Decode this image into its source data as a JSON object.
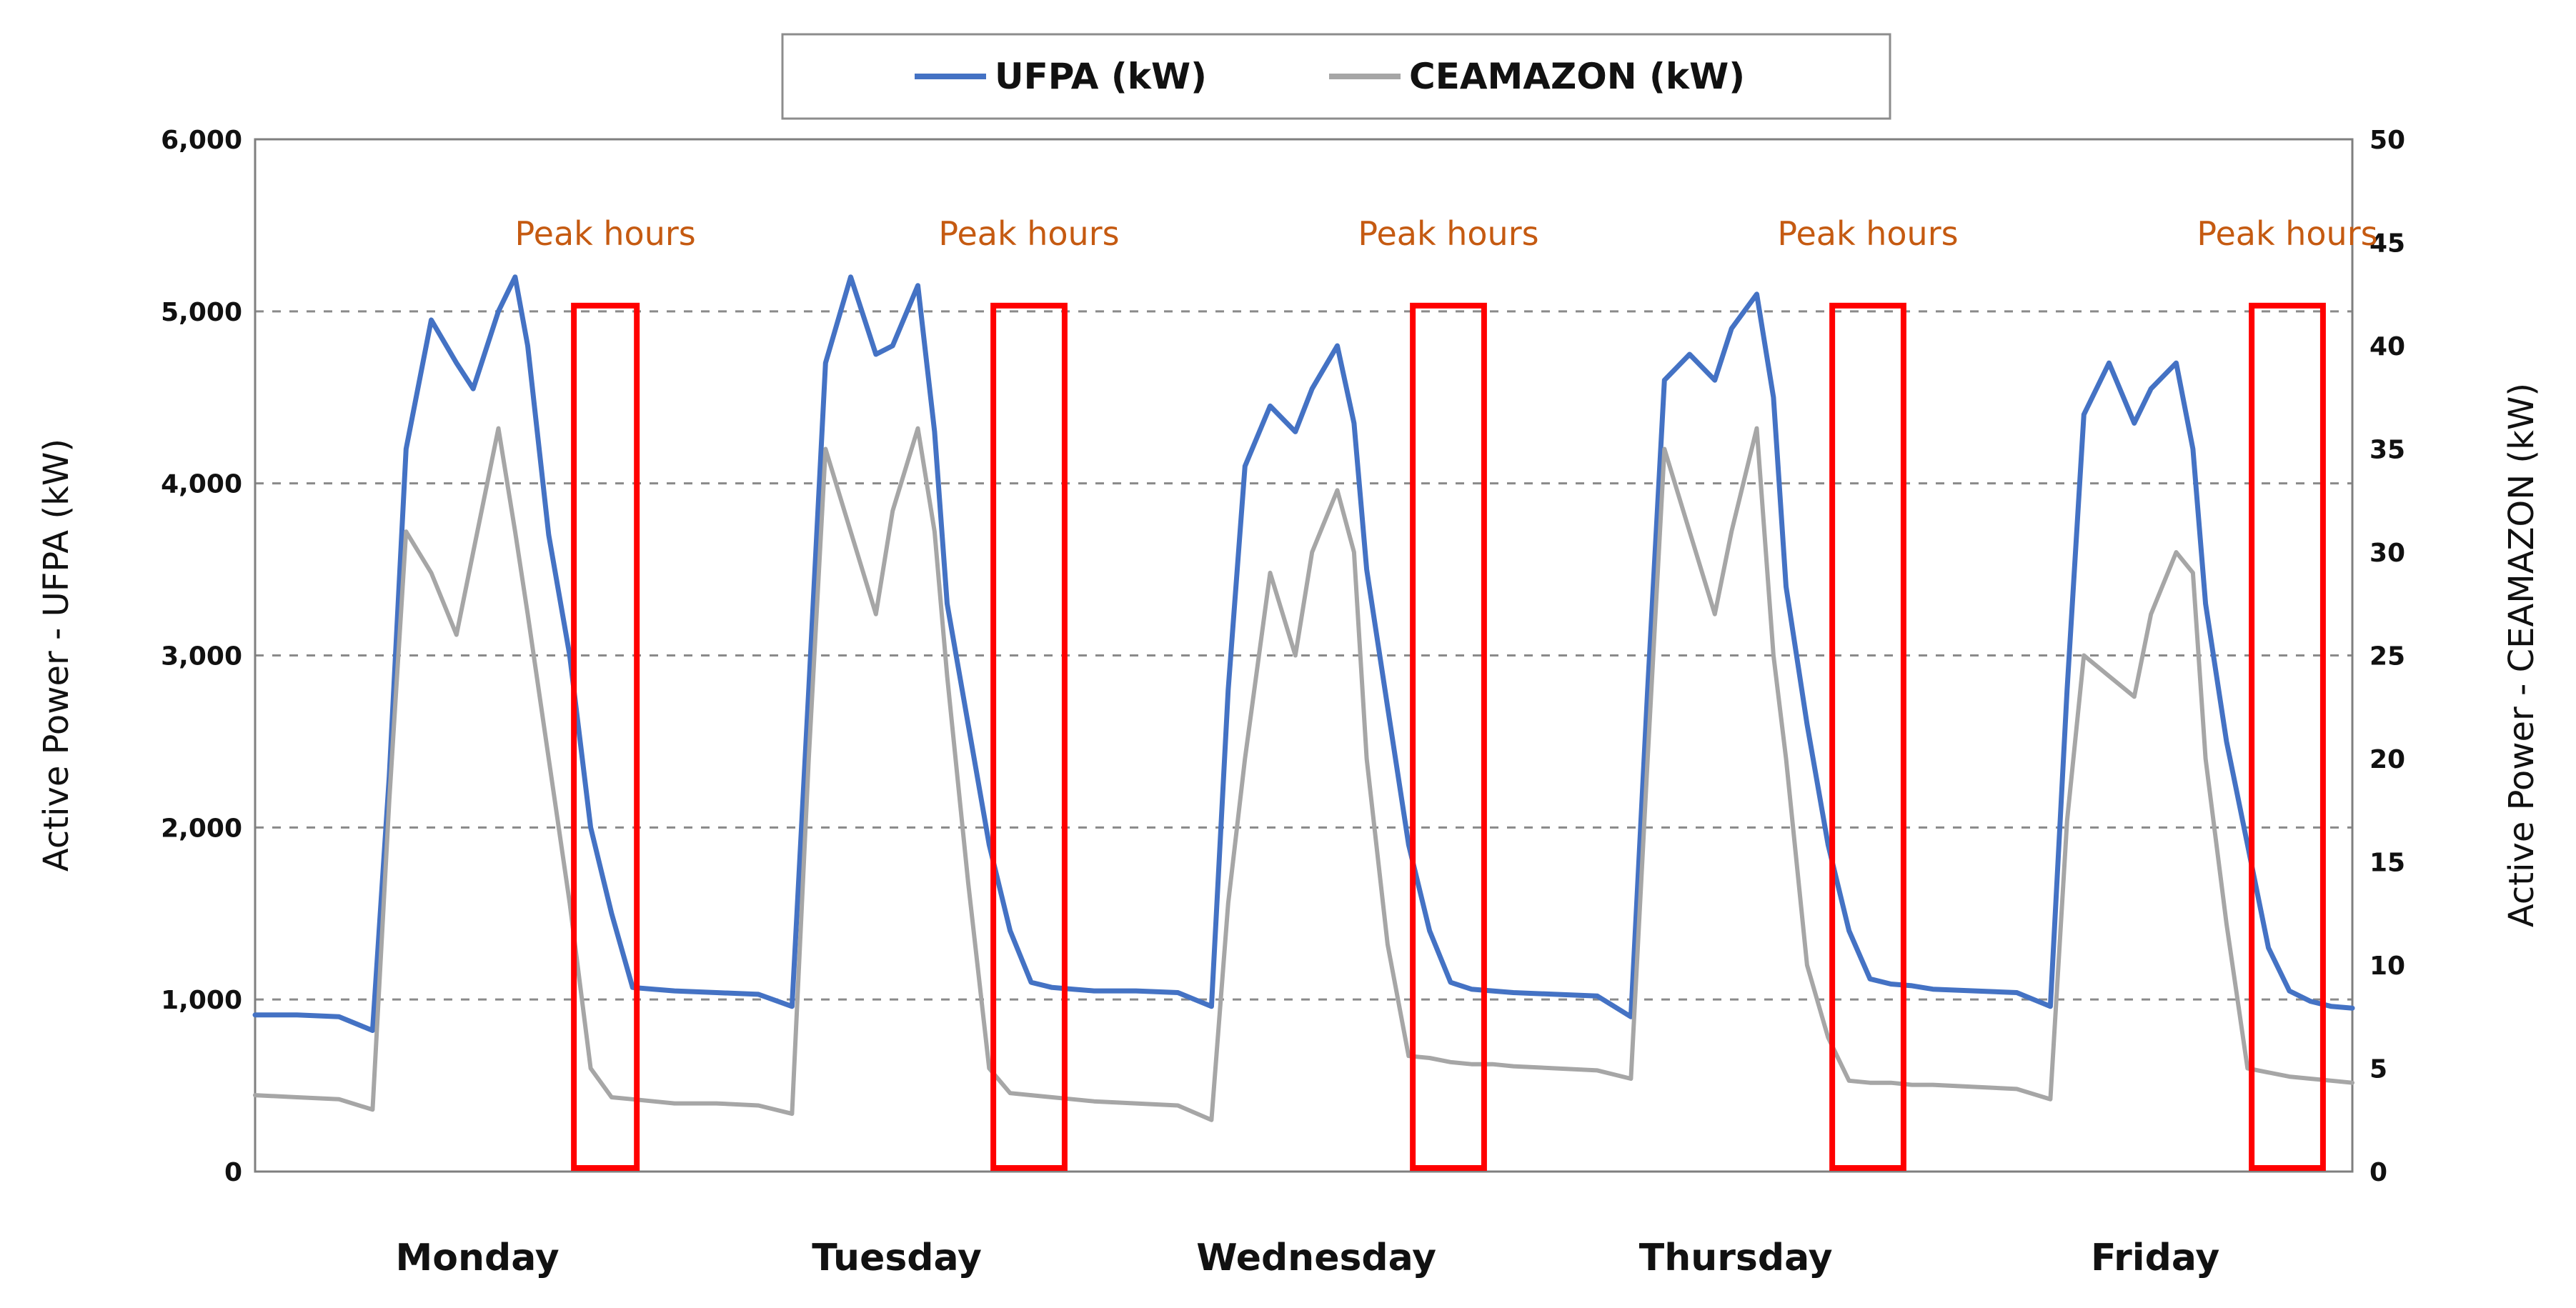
{
  "colors": {
    "ufpa": "#4472c4",
    "ceamazon": "#a6a6a6",
    "peak_box": "#ff0000",
    "peak_label": "#c55a11",
    "grid": "#8a8a8a",
    "axis": "#7f7f7f"
  },
  "chart_data": {
    "type": "line",
    "title": "",
    "legend_position": "top-center",
    "grid": true,
    "xlabel": "",
    "categories": [
      "Monday",
      "Tuesday",
      "Wednesday",
      "Thursday",
      "Friday"
    ],
    "x_domain": [
      0,
      5
    ],
    "y_left": {
      "label": "Active Power - UFPA (kW)",
      "lim": [
        0,
        6000
      ],
      "ticks": [
        0,
        1000,
        2000,
        3000,
        4000,
        5000,
        6000
      ],
      "tick_labels": [
        "0",
        "1,000",
        "2,000",
        "3,000",
        "4,000",
        "5,000",
        "6,000"
      ]
    },
    "y_right": {
      "label": "Active Power - CEAMAZON (kW)",
      "lim": [
        0,
        50
      ],
      "ticks": [
        0,
        5,
        10,
        15,
        20,
        25,
        30,
        35,
        40,
        45,
        50
      ],
      "tick_labels": [
        "0",
        "5",
        "10",
        "15",
        "20",
        "25",
        "30",
        "35",
        "40",
        "45",
        "50"
      ]
    },
    "series": [
      {
        "name": "UFPA (kW)",
        "axis": "left",
        "x": [
          0.0,
          0.1,
          0.2,
          0.28,
          0.32,
          0.36,
          0.42,
          0.48,
          0.52,
          0.58,
          0.62,
          0.65,
          0.7,
          0.75,
          0.8,
          0.85,
          0.9,
          0.95,
          1.0,
          1.1,
          1.2,
          1.28,
          1.32,
          1.36,
          1.42,
          1.48,
          1.52,
          1.58,
          1.62,
          1.65,
          1.7,
          1.75,
          1.8,
          1.85,
          1.9,
          1.95,
          2.0,
          2.1,
          2.2,
          2.28,
          2.32,
          2.36,
          2.42,
          2.48,
          2.52,
          2.58,
          2.62,
          2.65,
          2.7,
          2.75,
          2.8,
          2.85,
          2.9,
          2.95,
          3.0,
          3.1,
          3.2,
          3.28,
          3.32,
          3.36,
          3.42,
          3.48,
          3.52,
          3.58,
          3.62,
          3.65,
          3.7,
          3.75,
          3.8,
          3.85,
          3.9,
          3.95,
          4.0,
          4.1,
          4.2,
          4.28,
          4.32,
          4.36,
          4.42,
          4.48,
          4.52,
          4.58,
          4.62,
          4.65,
          4.7,
          4.75,
          4.8,
          4.85,
          4.9,
          4.95,
          5.0
        ],
        "values": [
          910,
          910,
          900,
          820,
          2300,
          4200,
          4950,
          4700,
          4550,
          5000,
          5200,
          4800,
          3700,
          3000,
          2000,
          1500,
          1070,
          1060,
          1050,
          1040,
          1030,
          960,
          2800,
          4700,
          5200,
          4750,
          4800,
          5150,
          4300,
          3300,
          2600,
          1900,
          1400,
          1100,
          1070,
          1060,
          1050,
          1050,
          1040,
          960,
          2800,
          4100,
          4450,
          4300,
          4550,
          4800,
          4350,
          3500,
          2700,
          1900,
          1400,
          1100,
          1060,
          1050,
          1040,
          1030,
          1020,
          900,
          2800,
          4600,
          4750,
          4600,
          4900,
          5100,
          4500,
          3400,
          2600,
          1900,
          1400,
          1120,
          1090,
          1080,
          1060,
          1050,
          1040,
          960,
          2800,
          4400,
          4700,
          4350,
          4550,
          4700,
          4200,
          3300,
          2500,
          1900,
          1300,
          1050,
          990,
          960,
          950
        ]
      },
      {
        "name": "CEAMAZON (kW)",
        "axis": "right",
        "x": [
          0.0,
          0.1,
          0.2,
          0.28,
          0.32,
          0.36,
          0.42,
          0.48,
          0.52,
          0.58,
          0.62,
          0.65,
          0.7,
          0.75,
          0.8,
          0.85,
          0.9,
          0.95,
          1.0,
          1.1,
          1.2,
          1.28,
          1.32,
          1.36,
          1.42,
          1.48,
          1.52,
          1.58,
          1.62,
          1.65,
          1.7,
          1.75,
          1.8,
          1.85,
          1.9,
          1.95,
          2.0,
          2.1,
          2.2,
          2.28,
          2.32,
          2.36,
          2.42,
          2.48,
          2.52,
          2.58,
          2.62,
          2.65,
          2.7,
          2.75,
          2.8,
          2.85,
          2.9,
          2.95,
          3.0,
          3.1,
          3.2,
          3.28,
          3.32,
          3.36,
          3.42,
          3.48,
          3.52,
          3.58,
          3.62,
          3.65,
          3.7,
          3.75,
          3.8,
          3.85,
          3.9,
          3.95,
          4.0,
          4.1,
          4.2,
          4.28,
          4.32,
          4.36,
          4.42,
          4.48,
          4.52,
          4.58,
          4.62,
          4.65,
          4.7,
          4.75,
          4.8,
          4.85,
          4.9,
          4.95,
          5.0
        ],
        "values": [
          3.7,
          3.6,
          3.5,
          3.0,
          18,
          31,
          29,
          26,
          30,
          36,
          31,
          27,
          20,
          13,
          5,
          3.6,
          3.5,
          3.4,
          3.3,
          3.3,
          3.2,
          2.8,
          20,
          35,
          31,
          27,
          32,
          36,
          31,
          24,
          14,
          5,
          3.8,
          3.7,
          3.6,
          3.5,
          3.4,
          3.3,
          3.2,
          2.5,
          13,
          20,
          29,
          25,
          30,
          33,
          30,
          20,
          11,
          5.6,
          5.5,
          5.3,
          5.2,
          5.2,
          5.1,
          5.0,
          4.9,
          4.5,
          20,
          35,
          31,
          27,
          31,
          36,
          25,
          20,
          10,
          6.5,
          4.4,
          4.3,
          4.3,
          4.2,
          4.2,
          4.1,
          4.0,
          3.5,
          17,
          25,
          24,
          23,
          27,
          30,
          29,
          20,
          12,
          5.0,
          4.8,
          4.6,
          4.5,
          4.4,
          4.3
        ]
      }
    ],
    "annotations": [
      {
        "text": "Peak hours",
        "x_start": 0.76,
        "x_end": 0.91
      },
      {
        "text": "Peak hours",
        "x_start": 1.76,
        "x_end": 1.93
      },
      {
        "text": "Peak hours",
        "x_start": 2.76,
        "x_end": 2.93
      },
      {
        "text": "Peak hours",
        "x_start": 3.76,
        "x_end": 3.93
      },
      {
        "text": "Peak hours",
        "x_start": 4.76,
        "x_end": 4.93
      }
    ]
  }
}
